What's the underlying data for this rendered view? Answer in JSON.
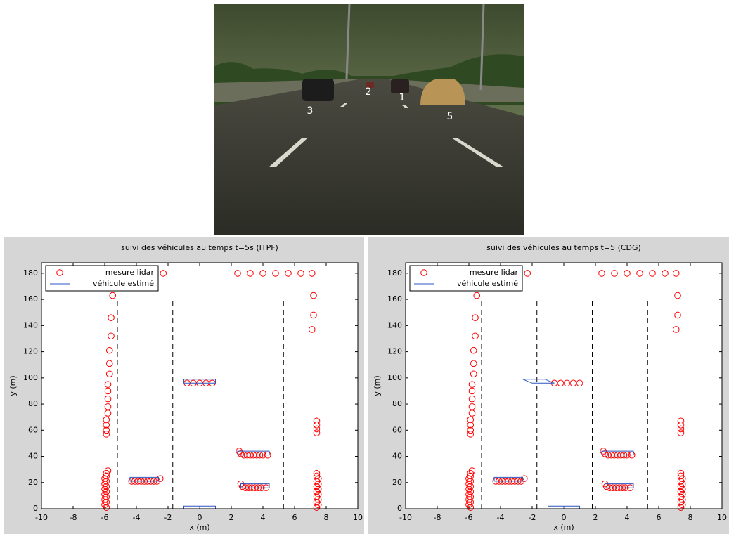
{
  "photo": {
    "labels": [
      "3",
      "2",
      "1",
      "5"
    ]
  },
  "chart_data": [
    {
      "type": "scatter",
      "title": "suivi des véhicules au temps t=5s (ITPF)",
      "x_label": "x (m)",
      "y_label": "y (m)",
      "xlim": [
        -10,
        10
      ],
      "ylim": [
        0,
        188
      ],
      "xticks": [
        -10,
        -8,
        -6,
        -4,
        -2,
        0,
        2,
        4,
        6,
        8,
        10
      ],
      "yticks": [
        0,
        20,
        40,
        60,
        80,
        100,
        120,
        140,
        160,
        180
      ],
      "legend": "upper left",
      "series": [
        {
          "name": "mesure lidar",
          "color": "#ff0000",
          "style": "circle",
          "x": [
            -2.3,
            2.4,
            3.2,
            4.0,
            4.8,
            5.6,
            6.4,
            7.1,
            -5.5,
            -5.6,
            -5.6,
            -5.7,
            -5.7,
            -5.7,
            -5.8,
            -5.8,
            -5.8,
            -5.8,
            -5.8,
            -5.9,
            -5.9,
            -5.9,
            -5.9,
            -5.9,
            -6.0,
            -5.9,
            -6.0,
            -5.9,
            -6.0,
            -5.9,
            -6.0,
            -5.9,
            -6.0,
            -5.9,
            -6.0,
            -5.9,
            -5.9,
            -5.8,
            -4.3,
            -4.1,
            -3.9,
            -3.7,
            -3.5,
            -3.3,
            -3.1,
            -2.9,
            -2.7,
            -2.5,
            -0.8,
            -0.4,
            0,
            0.4,
            0.8,
            2.5,
            2.6,
            2.8,
            3.0,
            3.2,
            3.4,
            3.6,
            3.8,
            4.0,
            4.3,
            2.6,
            2.7,
            2.9,
            3.1,
            3.3,
            3.5,
            3.7,
            3.9,
            4.2,
            7.2,
            7.2,
            7.1,
            7.4,
            7.4,
            7.4,
            7.4,
            7.4,
            7.5,
            7.4,
            7.5,
            7.4,
            7.5,
            7.4,
            7.5,
            7.4,
            7.5,
            7.4,
            7.5,
            7.4,
            7.4
          ],
          "y": [
            180,
            180,
            180,
            180,
            180,
            180,
            180,
            180,
            163,
            146,
            132,
            121,
            111,
            103,
            95,
            90,
            84,
            78,
            73,
            68,
            64,
            60,
            57,
            1,
            3,
            5,
            7,
            9,
            11,
            13,
            15,
            17,
            19,
            21,
            23,
            25,
            27,
            29,
            21,
            21,
            21,
            21,
            21,
            21,
            21,
            21,
            21,
            23,
            96,
            96,
            96,
            96,
            96,
            44,
            42,
            41,
            41,
            41,
            41,
            41,
            41,
            41,
            41,
            19,
            17,
            16,
            16,
            16,
            16,
            16,
            16,
            16,
            163,
            148,
            137,
            67,
            64,
            61,
            58,
            1,
            3,
            5,
            7,
            9,
            11,
            13,
            15,
            17,
            19,
            21,
            23,
            25,
            27
          ]
        },
        {
          "name": "véhicule estimé",
          "color": "#2b55c0",
          "style": "line",
          "x": [
            -4.4,
            -2.6,
            -2.6,
            -4.4,
            -4.4,
            null,
            -1,
            1,
            1,
            -1,
            -1,
            null,
            -1,
            1,
            1,
            -1,
            -1,
            null,
            0,
            0,
            null,
            2.4,
            4.4,
            4.4,
            2.4,
            2.4,
            null,
            2.6,
            4.4,
            4.4,
            2.6,
            2.6
          ],
          "y": [
            21,
            21,
            24,
            24,
            21,
            null,
            96,
            96,
            99,
            99,
            96,
            null,
            0,
            0,
            2,
            2,
            0,
            null,
            0,
            2,
            null,
            41,
            41,
            44,
            44,
            41,
            null,
            16,
            16,
            19,
            19,
            16
          ]
        }
      ],
      "lane_markings": {
        "color": "#000000",
        "x": [
          -5.2,
          -5.2,
          null,
          -1.7,
          -1.7,
          null,
          1.8,
          1.8,
          null,
          5.3,
          5.3
        ],
        "y": [
          0,
          160,
          null,
          0,
          160,
          null,
          0,
          160,
          null,
          0,
          160
        ]
      }
    },
    {
      "type": "scatter",
      "title": "suivi des véhicules au temps t=5 (CDG)",
      "x_label": "x (m)",
      "y_label": "y (m)",
      "xlim": [
        -10,
        10
      ],
      "ylim": [
        0,
        188
      ],
      "xticks": [
        -10,
        -8,
        -6,
        -4,
        -2,
        0,
        2,
        4,
        6,
        8,
        10
      ],
      "yticks": [
        0,
        20,
        40,
        60,
        80,
        100,
        120,
        140,
        160,
        180
      ],
      "legend": "upper left",
      "series": [
        {
          "name": "mesure lidar",
          "color": "#ff0000",
          "style": "circle",
          "x": [
            -2.3,
            2.4,
            3.2,
            4.0,
            4.8,
            5.6,
            6.4,
            7.1,
            -5.5,
            -5.6,
            -5.6,
            -5.7,
            -5.7,
            -5.7,
            -5.8,
            -5.8,
            -5.8,
            -5.8,
            -5.8,
            -5.9,
            -5.9,
            -5.9,
            -5.9,
            -5.9,
            -6.0,
            -5.9,
            -6.0,
            -5.9,
            -6.0,
            -5.9,
            -6.0,
            -5.9,
            -6.0,
            -5.9,
            -6.0,
            -5.9,
            -5.9,
            -5.8,
            -4.3,
            -4.1,
            -3.9,
            -3.7,
            -3.5,
            -3.3,
            -3.1,
            -2.9,
            -2.7,
            -2.5,
            -0.6,
            -0.2,
            0.2,
            0.6,
            1.0,
            2.5,
            2.6,
            2.8,
            3.0,
            3.2,
            3.4,
            3.6,
            3.8,
            4.0,
            4.3,
            2.6,
            2.7,
            2.9,
            3.1,
            3.3,
            3.5,
            3.7,
            3.9,
            4.2,
            7.2,
            7.2,
            7.1,
            7.4,
            7.4,
            7.4,
            7.4,
            7.4,
            7.5,
            7.4,
            7.5,
            7.4,
            7.5,
            7.4,
            7.5,
            7.4,
            7.5,
            7.4,
            7.5,
            7.4,
            7.4
          ],
          "y": [
            180,
            180,
            180,
            180,
            180,
            180,
            180,
            180,
            163,
            146,
            132,
            121,
            111,
            103,
            95,
            90,
            84,
            78,
            73,
            68,
            64,
            60,
            57,
            1,
            3,
            5,
            7,
            9,
            11,
            13,
            15,
            17,
            19,
            21,
            23,
            25,
            27,
            29,
            21,
            21,
            21,
            21,
            21,
            21,
            21,
            21,
            21,
            23,
            96,
            96,
            96,
            96,
            96,
            44,
            42,
            41,
            41,
            41,
            41,
            41,
            41,
            41,
            41,
            19,
            17,
            16,
            16,
            16,
            16,
            16,
            16,
            16,
            163,
            148,
            137,
            67,
            64,
            61,
            58,
            1,
            3,
            5,
            7,
            9,
            11,
            13,
            15,
            17,
            19,
            21,
            23,
            25,
            27
          ]
        },
        {
          "name": "véhicule estimé",
          "color": "#2b55c0",
          "style": "line",
          "x": [
            -4.4,
            -2.6,
            -2.6,
            -4.4,
            -4.4,
            null,
            -2.6,
            -1.2,
            -0.6,
            -2.0,
            -2.6,
            null,
            -1,
            1,
            1,
            -1,
            -1,
            null,
            0,
            0,
            null,
            2.4,
            4.4,
            4.4,
            2.4,
            2.4,
            null,
            2.6,
            4.4,
            4.4,
            2.6,
            2.6
          ],
          "y": [
            21,
            21,
            24,
            24,
            21,
            null,
            99,
            99,
            96,
            96,
            99,
            null,
            0,
            0,
            2,
            2,
            0,
            null,
            0,
            2,
            null,
            41,
            41,
            44,
            44,
            41,
            null,
            16,
            16,
            19,
            19,
            16
          ]
        }
      ],
      "lane_markings": {
        "color": "#000000",
        "x": [
          -5.2,
          -5.2,
          null,
          -1.7,
          -1.7,
          null,
          1.8,
          1.8,
          null,
          5.3,
          5.3
        ],
        "y": [
          0,
          160,
          null,
          0,
          160,
          null,
          0,
          160,
          null,
          0,
          160
        ]
      }
    }
  ]
}
